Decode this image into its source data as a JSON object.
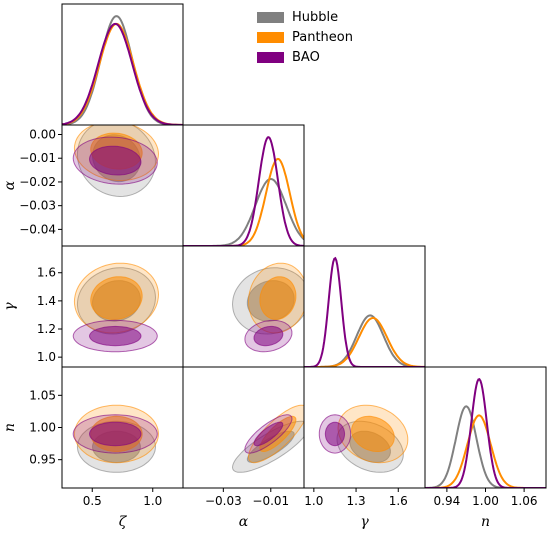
{
  "chart_data": {
    "type": "corner",
    "parameters": [
      {
        "key": "zeta",
        "label": "ζ",
        "ticks": [
          0.5,
          1.0
        ],
        "tick_labels": [
          "0.5",
          "1.0"
        ],
        "range": [
          0.25,
          1.25
        ]
      },
      {
        "key": "alpha",
        "label": "α",
        "ticks": [
          -0.04,
          -0.03,
          -0.02,
          -0.01,
          0.0
        ],
        "tick_labels": [
          "−0.04",
          "−0.03",
          "−0.02",
          "−0.01",
          "0.00"
        ],
        "x_ticks": [
          -0.03,
          -0.01
        ],
        "x_tick_labels": [
          "−0.03",
          "−0.01"
        ],
        "range": [
          -0.047,
          0.004
        ]
      },
      {
        "key": "gamma",
        "label": "γ",
        "ticks": [
          1.0,
          1.2,
          1.4,
          1.6
        ],
        "tick_labels": [
          "1.0",
          "1.2",
          "1.4",
          "1.6"
        ],
        "x_ticks": [
          1.0,
          1.3,
          1.6
        ],
        "x_tick_labels": [
          "1.0",
          "1.3",
          "1.6"
        ],
        "range": [
          0.93,
          1.79
        ]
      },
      {
        "key": "n",
        "label": "n",
        "ticks": [
          0.95,
          1.0,
          1.05
        ],
        "tick_labels": [
          "0.95",
          "1.00",
          "1.05"
        ],
        "x_ticks": [
          0.94,
          1.0,
          1.06
        ],
        "x_tick_labels": [
          "0.94",
          "1.00",
          "1.06"
        ],
        "range": [
          0.906,
          1.094
        ]
      }
    ],
    "series": [
      {
        "name": "Hubble",
        "color": "#808080",
        "mean": {
          "zeta": 0.7,
          "alpha": -0.01,
          "gamma": 1.4,
          "n": 0.97
        },
        "sigma": {
          "zeta": 0.13,
          "alpha": 0.0065,
          "gamma": 0.095,
          "n": 0.016
        },
        "corr": {
          "zeta-alpha": -0.1,
          "zeta-gamma": 0.1,
          "zeta-n": 0.0,
          "alpha-gamma": 0.1,
          "alpha-n": 0.8,
          "gamma-n": -0.3
        }
      },
      {
        "name": "Pantheon",
        "color": "#ff8c00",
        "mean": {
          "zeta": 0.7,
          "alpha": -0.007,
          "gamma": 1.42,
          "n": 0.99
        },
        "sigma": {
          "zeta": 0.14,
          "alpha": 0.005,
          "gamma": 0.1,
          "n": 0.018
        },
        "corr": {
          "zeta-alpha": -0.1,
          "zeta-gamma": 0.1,
          "zeta-n": 0.0,
          "alpha-gamma": 0.1,
          "alpha-n": 0.8,
          "gamma-n": -0.2
        }
      },
      {
        "name": "BAO",
        "color": "#800080",
        "mean": {
          "zeta": 0.69,
          "alpha": -0.011,
          "gamma": 1.15,
          "n": 0.99
        },
        "sigma": {
          "zeta": 0.14,
          "alpha": 0.004,
          "gamma": 0.045,
          "n": 0.012
        },
        "corr": {
          "zeta-alpha": -0.1,
          "zeta-gamma": 0.0,
          "zeta-n": 0.0,
          "alpha-gamma": 0.2,
          "alpha-n": 0.8,
          "gamma-n": 0.0
        }
      }
    ],
    "legend_position": "top-right"
  }
}
